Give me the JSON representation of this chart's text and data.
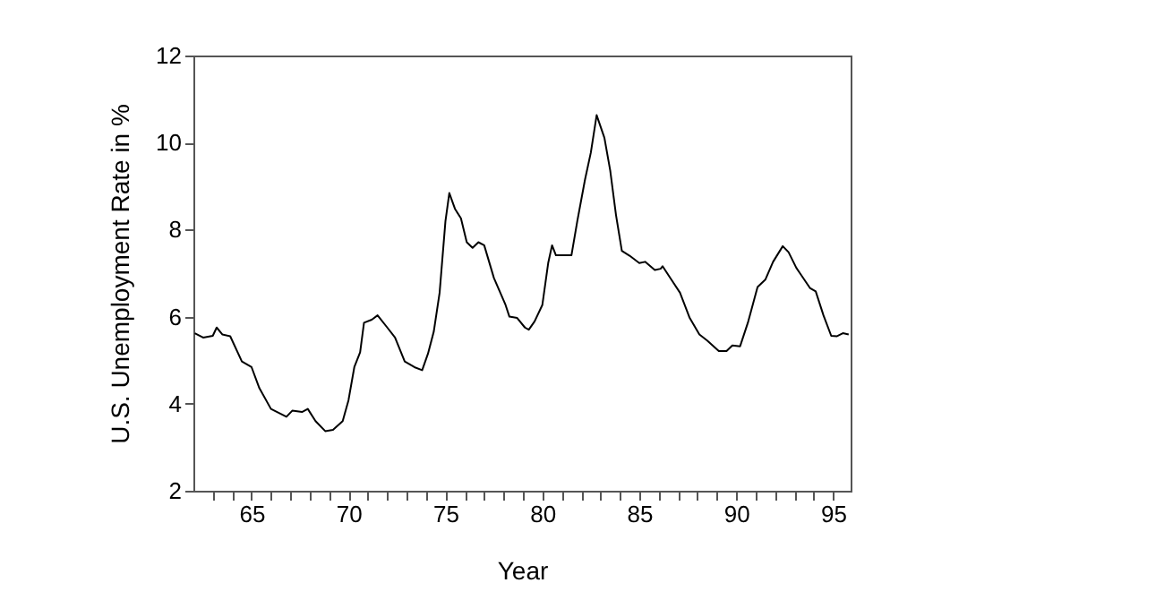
{
  "chart_data": {
    "type": "line",
    "xlabel": "Year",
    "ylabel": "U.S. Unemployment Rate in %",
    "xlim": [
      62,
      95.9
    ],
    "ylim": [
      2,
      12
    ],
    "yticks": [
      2,
      4,
      6,
      8,
      10,
      12
    ],
    "xticks": [
      {
        "value": 63,
        "label": null
      },
      {
        "value": 64,
        "label": null
      },
      65,
      {
        "value": 66,
        "label": null
      },
      {
        "value": 67,
        "label": null
      },
      {
        "value": 68,
        "label": null
      },
      {
        "value": 69,
        "label": null
      },
      70,
      {
        "value": 71,
        "label": null
      },
      {
        "value": 72,
        "label": null
      },
      {
        "value": 73,
        "label": null
      },
      {
        "value": 74,
        "label": null
      },
      75,
      {
        "value": 76,
        "label": null
      },
      {
        "value": 77,
        "label": null
      },
      {
        "value": 78,
        "label": null
      },
      {
        "value": 79,
        "label": null
      },
      80,
      {
        "value": 81,
        "label": null
      },
      {
        "value": 82,
        "label": null
      },
      {
        "value": 83,
        "label": null
      },
      {
        "value": 84,
        "label": null
      },
      85,
      {
        "value": 86,
        "label": null
      },
      {
        "value": 87,
        "label": null
      },
      {
        "value": 88,
        "label": null
      },
      {
        "value": 89,
        "label": null
      },
      90,
      {
        "value": 91,
        "label": null
      },
      {
        "value": 92,
        "label": null
      },
      {
        "value": 93,
        "label": null
      },
      {
        "value": 94,
        "label": null
      },
      95
    ],
    "grid": false,
    "line_style": "solid",
    "marker": "none",
    "x": [
      62.07,
      62.5,
      63.0,
      63.2,
      63.5,
      63.9,
      64.5,
      65.0,
      65.4,
      66.0,
      66.8,
      67.1,
      67.6,
      67.9,
      68.3,
      68.8,
      69.2,
      69.7,
      70.0,
      70.3,
      70.6,
      70.8,
      71.2,
      71.5,
      72.0,
      72.4,
      72.9,
      73.4,
      73.8,
      74.1,
      74.4,
      74.7,
      75.0,
      75.2,
      75.5,
      75.8,
      76.1,
      76.4,
      76.7,
      77.0,
      77.5,
      78.1,
      78.3,
      78.7,
      79.1,
      79.3,
      79.6,
      80.0,
      80.3,
      80.5,
      80.7,
      81.5,
      81.8,
      82.2,
      82.5,
      82.8,
      83.2,
      83.5,
      83.8,
      84.1,
      84.5,
      85.0,
      85.3,
      85.8,
      86.1,
      86.2,
      86.7,
      87.1,
      87.6,
      88.1,
      88.5,
      89.1,
      89.5,
      89.8,
      90.2,
      90.6,
      91.1,
      91.5,
      91.9,
      92.4,
      92.7,
      93.1,
      93.3,
      93.8,
      94.1,
      94.5,
      94.9,
      95.2,
      95.5,
      95.8
    ],
    "series": [
      {
        "color": "#000000",
        "values": [
          5.62,
          5.52,
          5.56,
          5.75,
          5.59,
          5.55,
          4.97,
          4.84,
          4.36,
          3.88,
          3.7,
          3.84,
          3.81,
          3.88,
          3.6,
          3.37,
          3.4,
          3.6,
          4.08,
          4.84,
          5.18,
          5.86,
          5.93,
          6.03,
          5.75,
          5.52,
          4.97,
          4.84,
          4.77,
          5.15,
          5.66,
          6.55,
          8.19,
          8.84,
          8.47,
          8.26,
          7.71,
          7.58,
          7.71,
          7.64,
          6.89,
          6.27,
          6.0,
          5.97,
          5.75,
          5.7,
          5.89,
          6.27,
          7.23,
          7.64,
          7.41,
          7.41,
          8.19,
          9.15,
          9.77,
          10.63,
          10.11,
          9.36,
          8.33,
          7.51,
          7.4,
          7.23,
          7.26,
          7.07,
          7.1,
          7.16,
          6.82,
          6.55,
          5.97,
          5.59,
          5.45,
          5.21,
          5.21,
          5.34,
          5.32,
          5.86,
          6.68,
          6.85,
          7.26,
          7.62,
          7.48,
          7.12,
          6.99,
          6.66,
          6.58,
          6.03,
          5.56,
          5.55,
          5.62,
          5.59
        ]
      }
    ]
  }
}
